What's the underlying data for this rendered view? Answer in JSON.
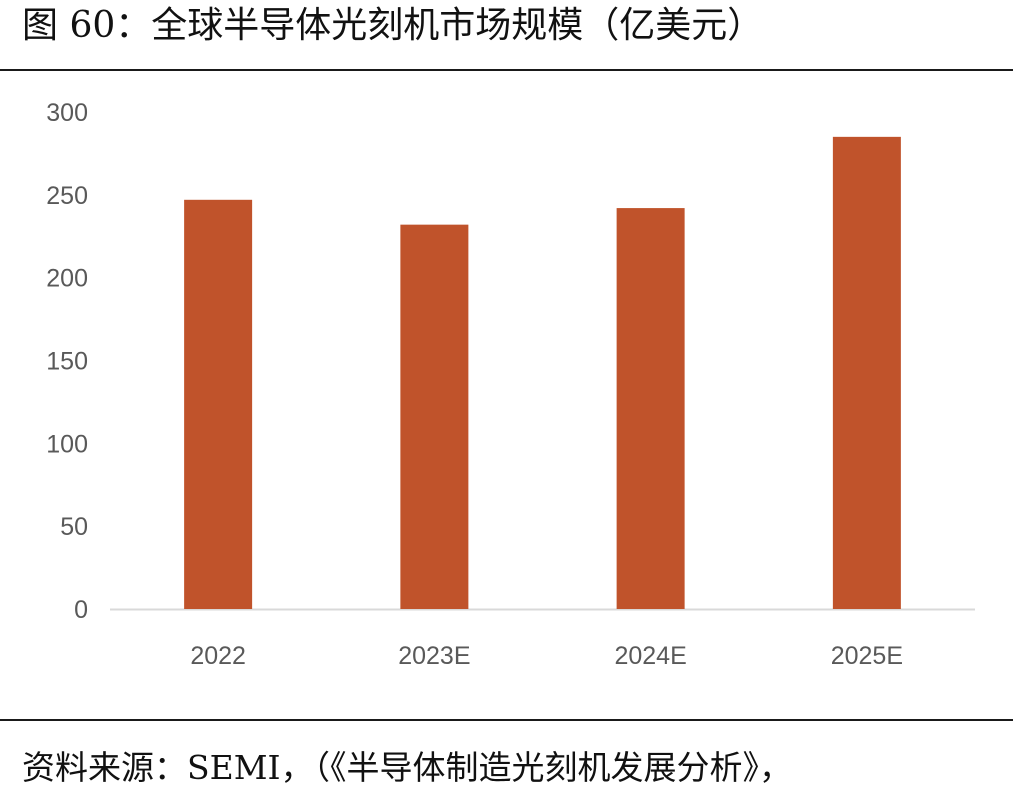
{
  "figure": {
    "title": "图 60：全球半导体光刻机市场规模（亿美元）",
    "source": "资料来源：SEMI，（《半导体制造光刻机发展分析》，"
  },
  "colors": {
    "bar": "#c0532b",
    "axis": "#d9d9d9",
    "tick_text": "#595959"
  },
  "chart_data": {
    "type": "bar",
    "title": "全球半导体光刻机市场规模（亿美元）",
    "categories": [
      "2022",
      "2023E",
      "2024E",
      "2025E"
    ],
    "values": [
      247,
      232,
      242,
      285
    ],
    "ylim": [
      0,
      300
    ],
    "yticks": [
      "0",
      "50",
      "100",
      "150",
      "200",
      "250",
      "300"
    ],
    "grid": false,
    "legend": "none"
  }
}
